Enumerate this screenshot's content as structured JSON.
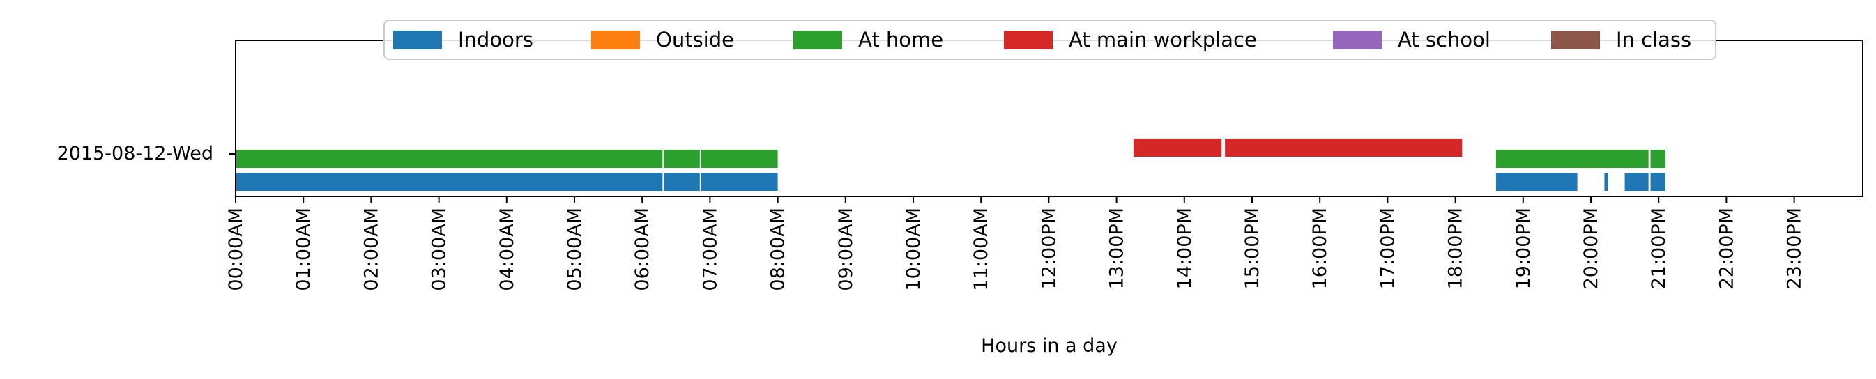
{
  "chart_data": {
    "type": "timeline",
    "xlabel": "Hours in a day",
    "xlim": [
      0,
      24
    ],
    "x_ticks": [
      "00:00AM",
      "01:00AM",
      "02:00AM",
      "03:00AM",
      "04:00AM",
      "05:00AM",
      "06:00AM",
      "07:00AM",
      "08:00AM",
      "09:00AM",
      "10:00AM",
      "11:00AM",
      "12:00PM",
      "13:00PM",
      "14:00PM",
      "15:00PM",
      "16:00PM",
      "17:00PM",
      "18:00PM",
      "19:00PM",
      "20:00PM",
      "21:00PM",
      "22:00PM",
      "23:00PM"
    ],
    "row_label": "2015-08-12-Wed",
    "legend_position": "top-center",
    "legend": [
      {
        "name": "Indoors",
        "color": "#1f77b4"
      },
      {
        "name": "Outside",
        "color": "#ff7f0e"
      },
      {
        "name": "At home",
        "color": "#2ca02c"
      },
      {
        "name": "At main workplace",
        "color": "#d62728"
      },
      {
        "name": "At school",
        "color": "#9467bd"
      },
      {
        "name": "In class",
        "color": "#8c564b"
      }
    ],
    "series": [
      {
        "name": "Indoors",
        "color": "#1f77b4",
        "intervals": [
          [
            0,
            6.3
          ],
          [
            6.32,
            6.85
          ],
          [
            6.87,
            8.0
          ],
          [
            18.6,
            19.8
          ],
          [
            20.2,
            20.25
          ],
          [
            20.5,
            20.85
          ],
          [
            20.88,
            21.1
          ]
        ]
      },
      {
        "name": "Outside",
        "color": "#ff7f0e",
        "intervals": []
      },
      {
        "name": "At home",
        "color": "#2ca02c",
        "intervals": [
          [
            0,
            6.3
          ],
          [
            6.32,
            6.85
          ],
          [
            6.87,
            8.0
          ],
          [
            18.6,
            20.85
          ],
          [
            20.88,
            21.1
          ]
        ]
      },
      {
        "name": "At main workplace",
        "color": "#d62728",
        "intervals": [
          [
            13.25,
            14.55
          ],
          [
            14.6,
            18.1
          ]
        ]
      },
      {
        "name": "At school",
        "color": "#9467bd",
        "intervals": []
      },
      {
        "name": "In class",
        "color": "#8c564b",
        "intervals": []
      }
    ]
  }
}
